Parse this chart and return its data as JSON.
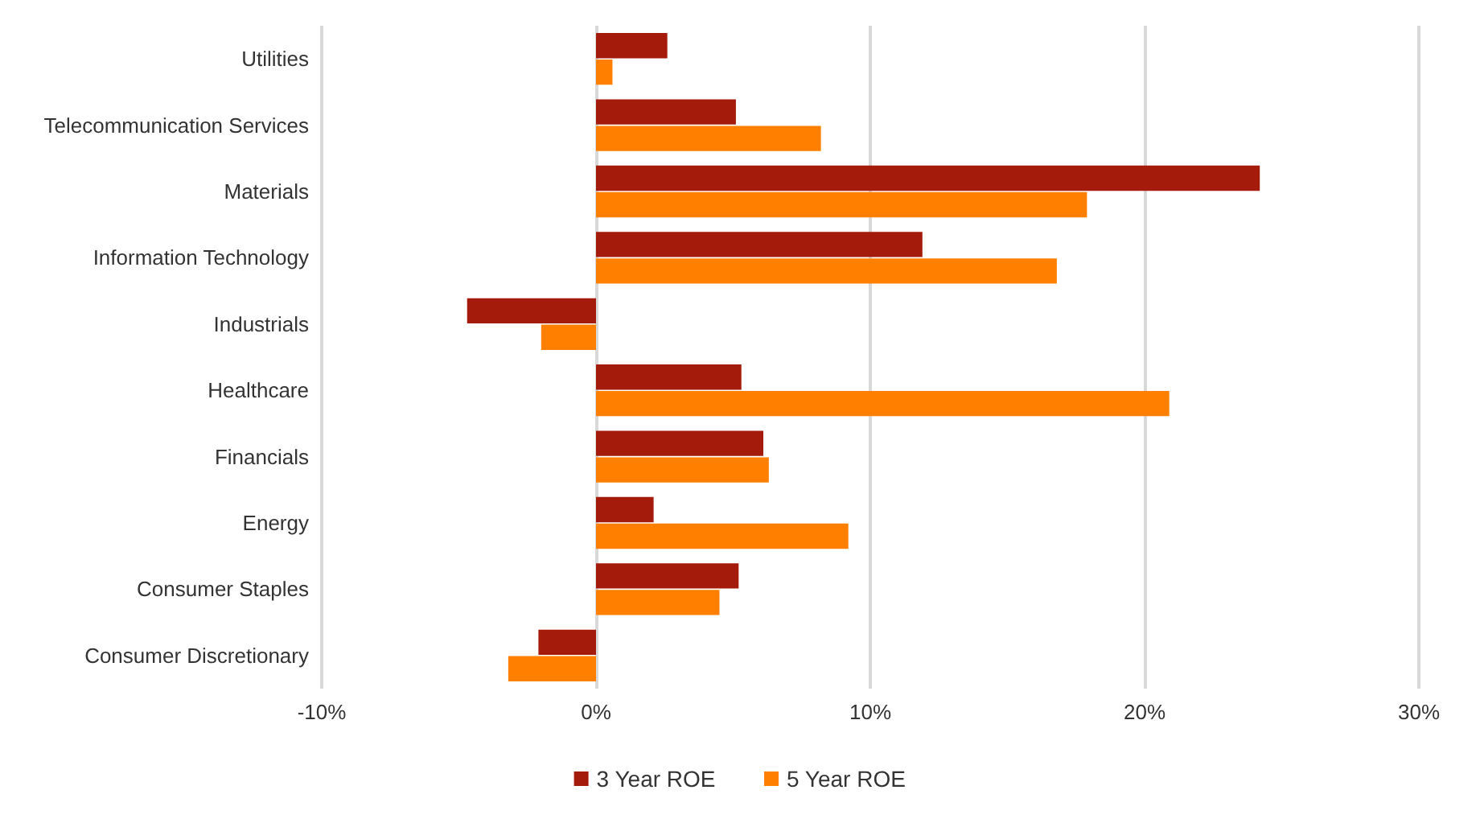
{
  "chart_data": {
    "type": "bar",
    "orientation": "horizontal",
    "categories": [
      "Utilities",
      "Telecommunication Services",
      "Materials",
      "Information Technology",
      "Industrials",
      "Healthcare",
      "Financials",
      "Energy",
      "Consumer Staples",
      "Consumer Discretionary"
    ],
    "series": [
      {
        "name": "3 Year ROE",
        "color": "#a51b0b",
        "values": [
          2.6,
          5.1,
          24.2,
          11.9,
          -4.7,
          5.3,
          6.1,
          2.1,
          5.2,
          -2.1
        ]
      },
      {
        "name": "5 Year ROE",
        "color": "#ff8000",
        "values": [
          0.6,
          8.2,
          17.9,
          16.8,
          -2.0,
          20.9,
          6.3,
          9.2,
          4.5,
          -3.2
        ]
      }
    ],
    "xlim": [
      -10,
      30
    ],
    "xticks": [
      {
        "value": -10,
        "label": "-10%"
      },
      {
        "value": 0,
        "label": "0%"
      },
      {
        "value": 10,
        "label": "10%"
      },
      {
        "value": 20,
        "label": "20%"
      },
      {
        "value": 30,
        "label": "30%"
      }
    ],
    "grid": "x",
    "legend": "bottom"
  }
}
